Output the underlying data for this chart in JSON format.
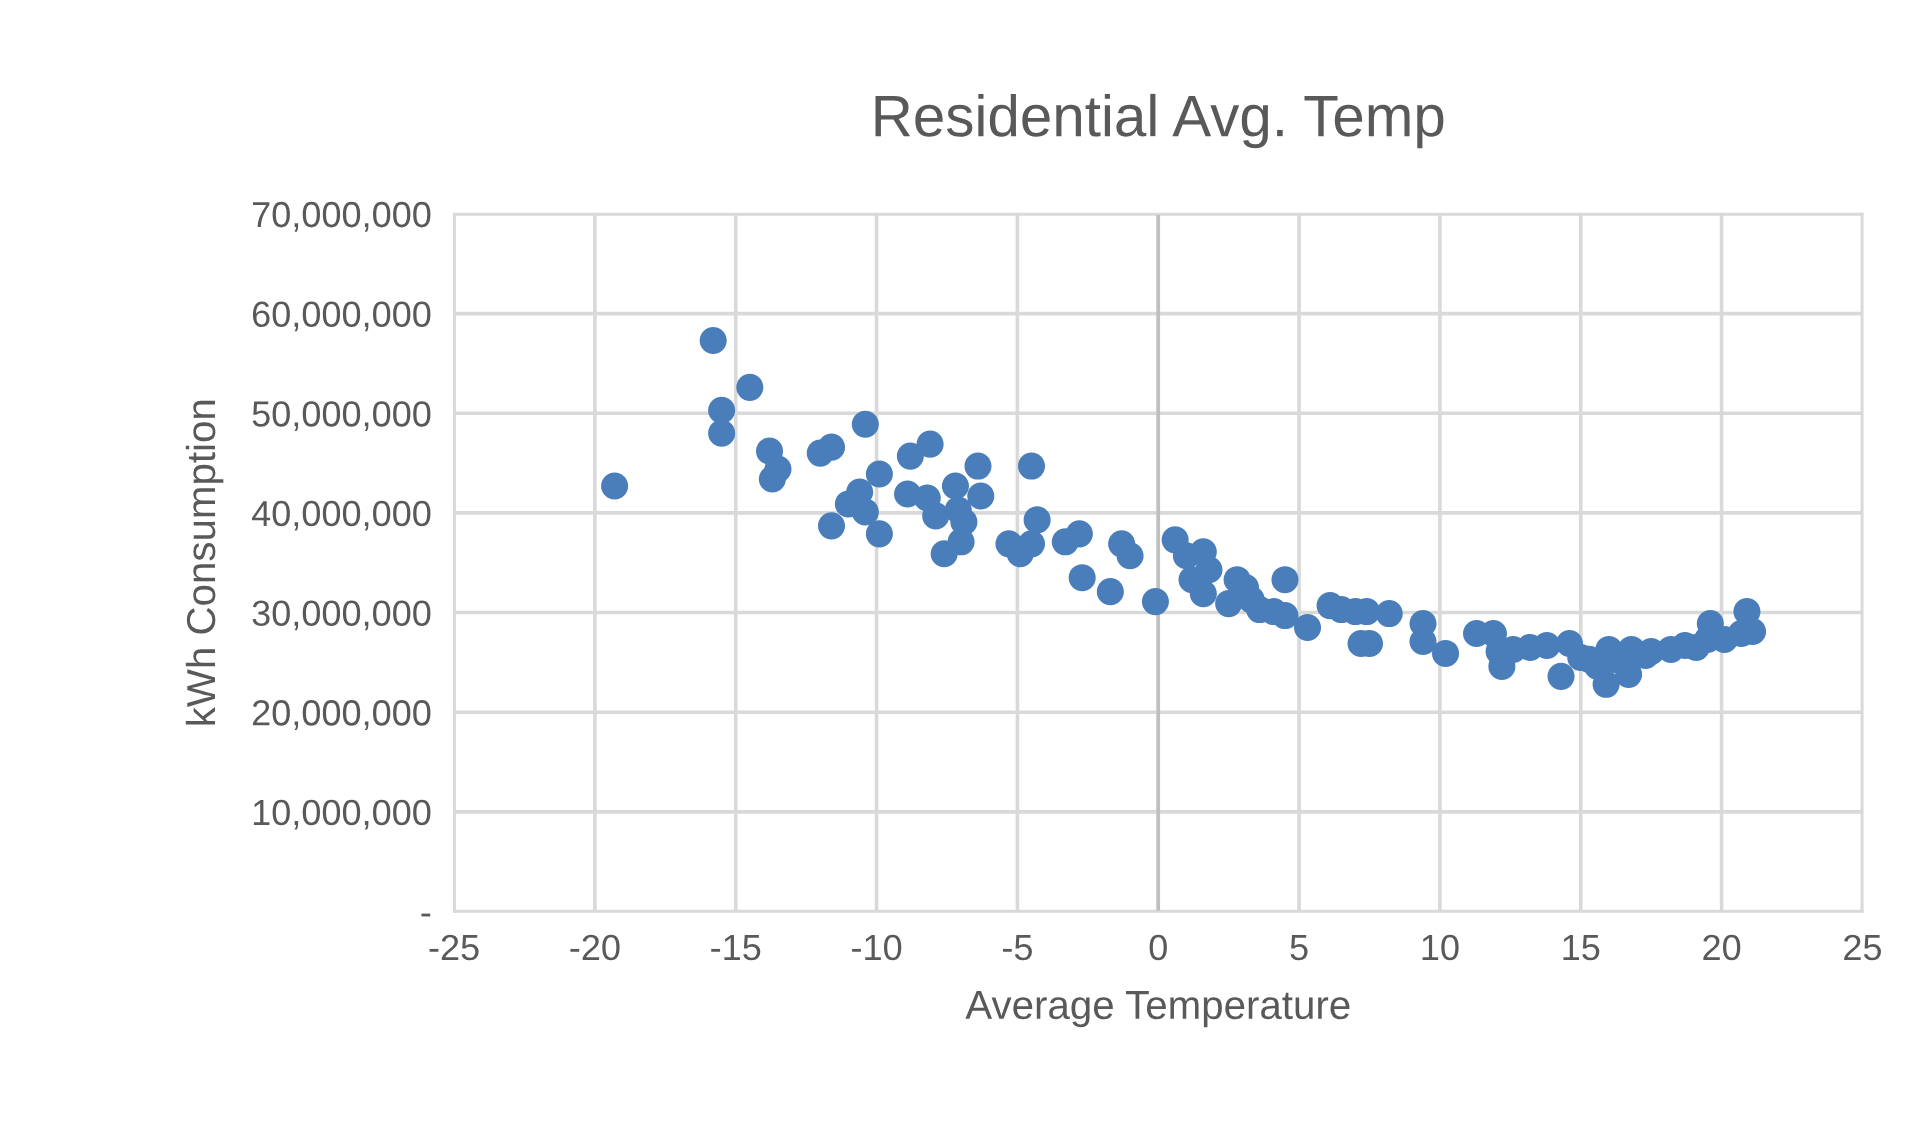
{
  "chart_data": {
    "type": "scatter",
    "title": "Residential Avg. Temp",
    "xlabel": "Average Temperature",
    "ylabel": "kWh Consumption",
    "xlim": [
      -25,
      25
    ],
    "xticks": [
      -25,
      -20,
      -15,
      -10,
      -5,
      0,
      5,
      10,
      15,
      20,
      25
    ],
    "ylim": [
      0,
      70000000
    ],
    "yticks": [
      {
        "value": 0,
        "label": "-"
      },
      {
        "value": 10000000,
        "label": "10,000,000"
      },
      {
        "value": 20000000,
        "label": "20,000,000"
      },
      {
        "value": 30000000,
        "label": "30,000,000"
      },
      {
        "value": 40000000,
        "label": "40,000,000"
      },
      {
        "value": 50000000,
        "label": "50,000,000"
      },
      {
        "value": 60000000,
        "label": "60,000,000"
      },
      {
        "value": 70000000,
        "label": "70,000,000"
      }
    ],
    "grid": true,
    "marker": "circle",
    "ref_lines": [
      {
        "axis": "x",
        "value": 0,
        "color": "#bfbfbf"
      }
    ],
    "series": [
      {
        "color": "#4a7ebb",
        "x": [
          -19.3,
          -15.8,
          -15.5,
          -15.5,
          -14.5,
          -13.8,
          -13.7,
          -13.5,
          -12.0,
          -11.6,
          -11.6,
          -10.4,
          -11.0,
          -10.6,
          -10.4,
          -9.9,
          -9.9,
          -8.8,
          -8.9,
          -8.1,
          -8.2,
          -7.9,
          -7.6,
          -7.2,
          -7.1,
          -7.0,
          -6.9,
          -6.4,
          -6.3,
          -4.5,
          -4.3,
          -5.3,
          -4.9,
          -4.5,
          -3.3,
          -2.8,
          -2.7,
          -1.7,
          -1.3,
          -1.0,
          -0.1,
          0.6,
          1.0,
          1.2,
          1.6,
          1.8,
          1.6,
          2.5,
          2.8,
          3.1,
          3.3,
          3.6,
          4.1,
          4.5,
          4.5,
          5.3,
          6.1,
          6.5,
          7.0,
          7.4,
          7.2,
          7.5,
          8.2,
          9.4,
          9.4,
          10.2,
          11.3,
          11.9,
          12.1,
          12.2,
          12.6,
          13.2,
          13.8,
          14.3,
          14.6,
          15.3,
          15.6,
          15.9,
          16.0,
          16.7,
          16.8,
          17.3,
          17.5,
          18.2,
          18.7,
          19.1,
          19.5,
          19.6,
          20.1,
          20.9,
          21.1,
          20.7,
          16.2,
          15.0
        ],
        "values": [
          42700000,
          57300000,
          50300000,
          48000000,
          52600000,
          46200000,
          43400000,
          44400000,
          46000000,
          46600000,
          38700000,
          48900000,
          40900000,
          42100000,
          40100000,
          37900000,
          43900000,
          45700000,
          41900000,
          46900000,
          41500000,
          39700000,
          35900000,
          42700000,
          40300000,
          37100000,
          39100000,
          44700000,
          41700000,
          44700000,
          39300000,
          36900000,
          35900000,
          36900000,
          37100000,
          37900000,
          33500000,
          32100000,
          36900000,
          35700000,
          31100000,
          37300000,
          35700000,
          33300000,
          36100000,
          34300000,
          31900000,
          30900000,
          33300000,
          32500000,
          31300000,
          30300000,
          30100000,
          29700000,
          33300000,
          28500000,
          30700000,
          30300000,
          30100000,
          30100000,
          26900000,
          26900000,
          29900000,
          28900000,
          27100000,
          25900000,
          27900000,
          27900000,
          26100000,
          24600000,
          26300000,
          26500000,
          26700000,
          23600000,
          26900000,
          25300000,
          24600000,
          22800000,
          26300000,
          23800000,
          26300000,
          25700000,
          26100000,
          26300000,
          26700000,
          26500000,
          27300000,
          28900000,
          27300000,
          30100000,
          28100000,
          27900000,
          25300000,
          25500000
        ]
      }
    ]
  }
}
